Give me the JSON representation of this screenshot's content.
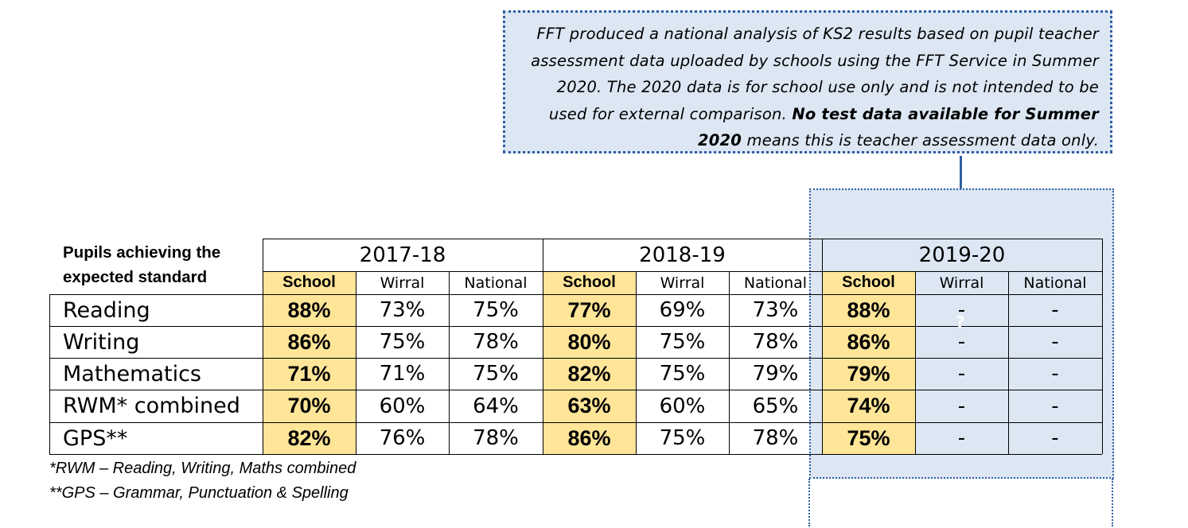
{
  "note": {
    "text_italic": "FFT produced a national analysis of KS2 results based on pupil teacher assessment data uploaded by schools using the FFT Service in Summer 2020. The 2020 data is for school use only and is not intended to be used for external comparison.",
    "text_bold": "No test data available for Summer 2020",
    "text_end": "means this is teacher assessment data only."
  },
  "heading": "Pupils achieving the expected standard",
  "years": [
    "2017-18",
    "2018-19",
    "2019-20"
  ],
  "subheaders": [
    "School",
    "Wirral",
    "National"
  ],
  "rows": [
    {
      "label": "Reading",
      "values": [
        "88%",
        "73%",
        "75%",
        "77%",
        "69%",
        "73%",
        "88%",
        "-",
        "-"
      ]
    },
    {
      "label": "Writing",
      "values": [
        "86%",
        "75%",
        "78%",
        "80%",
        "75%",
        "78%",
        "86%",
        "-",
        "-"
      ]
    },
    {
      "label": "Mathematics",
      "values": [
        "71%",
        "71%",
        "75%",
        "82%",
        "75%",
        "79%",
        "79%",
        "-",
        "-"
      ]
    },
    {
      "label": "RWM* combined",
      "values": [
        "70%",
        "60%",
        "64%",
        "63%",
        "60%",
        "65%",
        "74%",
        "-",
        "-"
      ]
    },
    {
      "label": "GPS**",
      "values": [
        "82%",
        "76%",
        "78%",
        "86%",
        "75%",
        "78%",
        "75%",
        "-",
        "-"
      ]
    }
  ],
  "footnotes": [
    "*RWM – Reading, Writing, Maths combined",
    "**GPS – Grammar, Punctuation & Spelling"
  ],
  "stray_mark": "?",
  "colors": {
    "school_fill": "#ffe598",
    "callout_fill": "#dce7f3",
    "callout_border": "#2e5fa3"
  }
}
